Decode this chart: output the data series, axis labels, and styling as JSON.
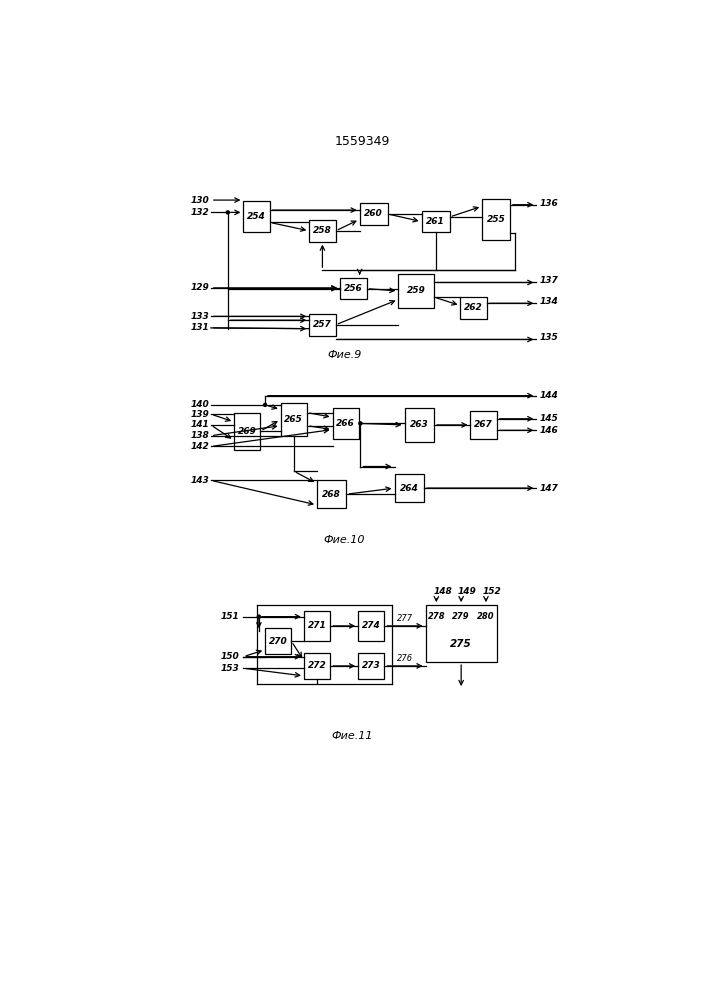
{
  "title": "1559349",
  "fig9_label": "Фие.9",
  "fig10_label": "Фие.10",
  "fig11_label": "Фие.11",
  "bg_color": "#ffffff",
  "lc": "#000000",
  "fs": 6.5,
  "lfs": 8.0,
  "lw": 0.9
}
